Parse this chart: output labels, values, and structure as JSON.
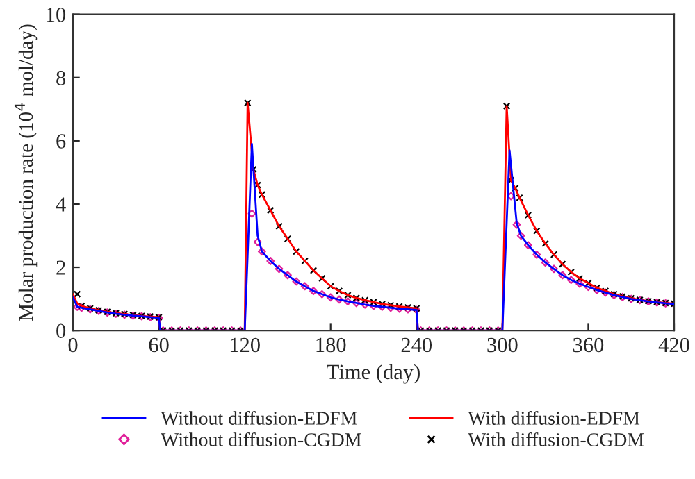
{
  "chart_data": {
    "type": "line",
    "xlabel": "Time (day)",
    "ylabel": "Molar production rate (10$^{4}$ mol/day)",
    "xlim": [
      0,
      420
    ],
    "xticks": [
      0,
      60,
      120,
      180,
      240,
      300,
      360,
      420
    ],
    "ylim": [
      0,
      10
    ],
    "yticks": [
      0,
      2,
      4,
      6,
      8,
      10
    ],
    "grid": false,
    "legend": "bottom",
    "series": [
      {
        "name": "Without diffusion-EDFM",
        "color": "#0000ff",
        "marker": "none",
        "x": [
          0,
          3,
          6,
          12,
          18,
          24,
          30,
          36,
          42,
          48,
          54,
          60,
          61,
          120,
          125,
          129,
          132,
          138,
          144,
          150,
          156,
          162,
          168,
          174,
          180,
          186,
          192,
          198,
          204,
          210,
          216,
          222,
          228,
          234,
          240,
          241,
          300,
          305,
          310,
          313,
          318,
          324,
          330,
          336,
          342,
          348,
          354,
          360,
          366,
          372,
          378,
          384,
          390,
          396,
          402,
          408,
          414,
          420
        ],
        "values": [
          1.05,
          0.75,
          0.72,
          0.67,
          0.62,
          0.57,
          0.53,
          0.5,
          0.47,
          0.45,
          0.42,
          0.4,
          0,
          0,
          5.9,
          3.0,
          2.5,
          2.2,
          1.95,
          1.75,
          1.55,
          1.4,
          1.25,
          1.15,
          1.05,
          0.98,
          0.92,
          0.87,
          0.82,
          0.78,
          0.75,
          0.72,
          0.69,
          0.67,
          0.65,
          0,
          0,
          5.7,
          3.4,
          3.0,
          2.7,
          2.4,
          2.15,
          1.95,
          1.75,
          1.6,
          1.48,
          1.38,
          1.28,
          1.2,
          1.12,
          1.06,
          1.0,
          0.96,
          0.92,
          0.89,
          0.86,
          0.84
        ]
      },
      {
        "name": "With diffusion-EDFM",
        "color": "#ff0000",
        "marker": "none",
        "x": [
          0,
          3,
          6,
          12,
          18,
          24,
          30,
          36,
          42,
          48,
          54,
          60,
          61,
          120,
          122,
          126,
          129,
          132,
          138,
          144,
          150,
          156,
          162,
          168,
          174,
          180,
          186,
          192,
          198,
          204,
          210,
          216,
          222,
          228,
          234,
          240,
          241,
          300,
          303,
          306,
          309,
          312,
          318,
          324,
          330,
          336,
          342,
          348,
          354,
          360,
          366,
          372,
          378,
          384,
          390,
          396,
          402,
          408,
          414,
          420
        ],
        "values": [
          1.15,
          0.85,
          0.78,
          0.7,
          0.64,
          0.59,
          0.55,
          0.52,
          0.49,
          0.46,
          0.44,
          0.42,
          0,
          0,
          7.2,
          5.1,
          4.6,
          4.3,
          3.8,
          3.3,
          2.9,
          2.5,
          2.2,
          1.9,
          1.65,
          1.4,
          1.25,
          1.12,
          1.03,
          0.96,
          0.9,
          0.84,
          0.8,
          0.76,
          0.73,
          0.7,
          0,
          0,
          7.1,
          4.75,
          4.5,
          4.2,
          3.65,
          3.15,
          2.75,
          2.4,
          2.1,
          1.85,
          1.65,
          1.5,
          1.35,
          1.25,
          1.15,
          1.08,
          1.02,
          0.97,
          0.93,
          0.9,
          0.87,
          0.85
        ]
      },
      {
        "name": "Without diffusion-CGDM",
        "type": "scatter",
        "color": "#e0209a",
        "marker": "diamond",
        "x": [
          3,
          6,
          12,
          18,
          24,
          30,
          36,
          42,
          48,
          54,
          60,
          63,
          69,
          75,
          81,
          87,
          93,
          99,
          105,
          111,
          117,
          125,
          129,
          132,
          138,
          144,
          150,
          156,
          162,
          168,
          174,
          180,
          186,
          192,
          198,
          204,
          210,
          216,
          222,
          228,
          234,
          240,
          243,
          249,
          255,
          261,
          267,
          273,
          279,
          285,
          291,
          297,
          306,
          310,
          313,
          318,
          324,
          330,
          336,
          342,
          348,
          354,
          360,
          366,
          372,
          378,
          384,
          390,
          396,
          402,
          408,
          414,
          420
        ],
        "values": [
          0.75,
          0.72,
          0.67,
          0.62,
          0.57,
          0.53,
          0.5,
          0.47,
          0.45,
          0.42,
          0.4,
          0,
          0,
          0,
          0,
          0,
          0,
          0,
          0,
          0,
          0,
          3.7,
          2.8,
          2.5,
          2.2,
          1.95,
          1.75,
          1.55,
          1.4,
          1.25,
          1.15,
          1.05,
          0.98,
          0.92,
          0.87,
          0.82,
          0.78,
          0.75,
          0.72,
          0.69,
          0.67,
          0.65,
          0,
          0,
          0,
          0,
          0,
          0,
          0,
          0,
          0,
          0,
          4.25,
          3.35,
          3.0,
          2.7,
          2.4,
          2.15,
          1.95,
          1.75,
          1.6,
          1.48,
          1.38,
          1.28,
          1.2,
          1.12,
          1.06,
          1.0,
          0.96,
          0.92,
          0.89,
          0.86,
          0.84
        ]
      },
      {
        "name": "With diffusion-CGDM",
        "type": "scatter",
        "color": "#000000",
        "marker": "cross",
        "x": [
          3,
          6,
          12,
          18,
          24,
          30,
          36,
          42,
          48,
          54,
          60,
          63,
          69,
          75,
          81,
          87,
          93,
          99,
          105,
          111,
          117,
          122,
          126,
          129,
          132,
          138,
          144,
          150,
          156,
          162,
          168,
          174,
          180,
          186,
          192,
          198,
          204,
          210,
          216,
          222,
          228,
          234,
          240,
          243,
          249,
          255,
          261,
          267,
          273,
          279,
          285,
          291,
          297,
          303,
          306,
          309,
          312,
          318,
          324,
          330,
          336,
          342,
          348,
          354,
          360,
          366,
          372,
          378,
          384,
          390,
          396,
          402,
          408,
          414,
          420
        ],
        "values": [
          1.15,
          0.78,
          0.7,
          0.64,
          0.59,
          0.55,
          0.52,
          0.49,
          0.46,
          0.44,
          0.42,
          0,
          0,
          0,
          0,
          0,
          0,
          0,
          0,
          0,
          0,
          7.2,
          5.1,
          4.6,
          4.3,
          3.8,
          3.3,
          2.9,
          2.5,
          2.2,
          1.9,
          1.65,
          1.4,
          1.25,
          1.12,
          1.03,
          0.96,
          0.9,
          0.84,
          0.8,
          0.76,
          0.73,
          0.7,
          0,
          0,
          0,
          0,
          0,
          0,
          0,
          0,
          0,
          0,
          7.1,
          4.75,
          4.5,
          4.2,
          3.65,
          3.15,
          2.75,
          2.4,
          2.1,
          1.85,
          1.65,
          1.5,
          1.35,
          1.25,
          1.15,
          1.08,
          1.02,
          0.97,
          0.93,
          0.9,
          0.87,
          0.85
        ]
      }
    ]
  }
}
